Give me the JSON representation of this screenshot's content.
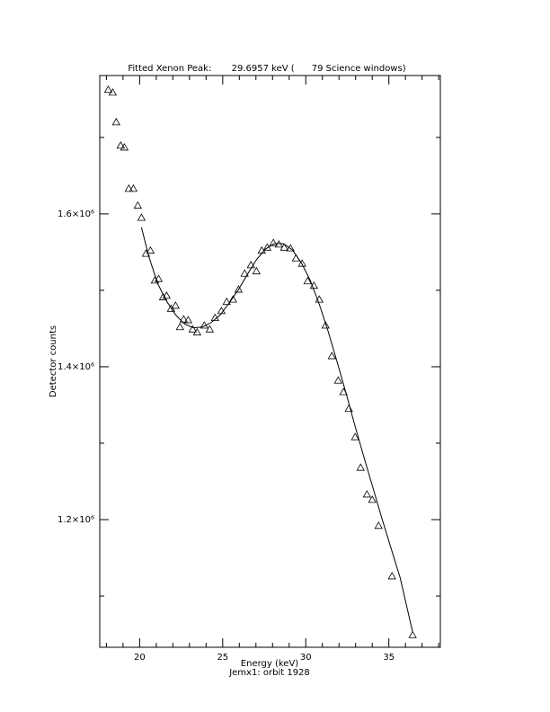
{
  "chart_data": {
    "type": "scatter",
    "title": "Fitted Xenon Peak:       29.6957 keV (      79 Science windows)",
    "x_label": "Energy (keV)",
    "y_label": "Detector counts",
    "subtitle": "Jemx1: orbit 1928",
    "xlim": [
      17.6,
      38.1
    ],
    "ylim": [
      1033000,
      1781000
    ],
    "xticks": [
      20,
      25,
      30,
      35
    ],
    "xticks_minor": [
      18,
      19,
      21,
      22,
      23,
      24,
      26,
      27,
      28,
      29,
      31,
      32,
      33,
      34,
      36,
      37,
      38
    ],
    "yticks": [
      {
        "value": 1200000,
        "label": "1.2×10⁶"
      },
      {
        "value": 1400000,
        "label": "1.4×10⁶"
      },
      {
        "value": 1600000,
        "label": "1.6×10⁶"
      }
    ],
    "yticks_minor": [
      1100000,
      1300000,
      1500000,
      1700000
    ],
    "color": "#000000",
    "series": [
      {
        "type": "scatter",
        "marker": "triangle",
        "x": [
          18.11,
          18.38,
          18.59,
          18.86,
          19.08,
          19.35,
          19.62,
          19.89,
          20.11,
          20.38,
          20.65,
          20.92,
          21.14,
          21.41,
          21.62,
          21.89,
          22.16,
          22.43,
          22.65,
          22.92,
          23.19,
          23.46,
          23.89,
          24.22,
          24.54,
          24.92,
          25.24,
          25.62,
          25.95,
          26.32,
          26.7,
          27.03,
          27.35,
          27.68,
          28.05,
          28.38,
          28.7,
          29.08,
          29.41,
          29.78,
          30.11,
          30.49,
          30.81,
          31.19,
          31.57,
          31.95,
          32.27,
          32.59,
          32.97,
          33.3,
          33.68,
          34.0,
          34.38,
          35.19,
          36.43
        ],
        "values": [
          1762400,
          1758800,
          1720000,
          1689400,
          1687000,
          1633000,
          1633000,
          1611000,
          1595000,
          1548000,
          1552000,
          1513000,
          1515000,
          1491000,
          1493000,
          1476000,
          1480000,
          1452000,
          1462000,
          1461000,
          1449000,
          1445000,
          1454000,
          1449000,
          1464000,
          1473000,
          1485000,
          1488000,
          1501000,
          1522000,
          1533000,
          1525000,
          1552000,
          1556000,
          1562000,
          1560000,
          1556000,
          1555000,
          1542000,
          1535000,
          1512000,
          1506000,
          1488000,
          1454000,
          1414000,
          1382000,
          1367000,
          1345000,
          1308000,
          1268000,
          1233000,
          1226000,
          1192000,
          1126000,
          1049000
        ]
      },
      {
        "type": "line",
        "x": [
          20.11,
          20.54,
          21.08,
          21.62,
          22.16,
          22.7,
          23.24,
          23.78,
          24.32,
          24.86,
          25.41,
          25.95,
          26.49,
          27.03,
          27.57,
          28.11,
          28.65,
          29.19,
          29.73,
          30.27,
          30.81,
          31.35,
          31.89,
          32.43,
          32.97,
          33.51,
          34.05,
          34.59,
          35.14,
          35.68,
          36.43
        ],
        "values": [
          1582400,
          1545000,
          1509000,
          1486000,
          1468000,
          1456000,
          1451000,
          1452000,
          1458000,
          1468000,
          1484000,
          1501000,
          1521000,
          1540000,
          1554000,
          1561000,
          1561000,
          1553000,
          1536000,
          1513000,
          1482000,
          1446000,
          1406000,
          1365000,
          1322000,
          1281000,
          1241000,
          1201000,
          1162000,
          1124000,
          1053000
        ]
      }
    ]
  }
}
